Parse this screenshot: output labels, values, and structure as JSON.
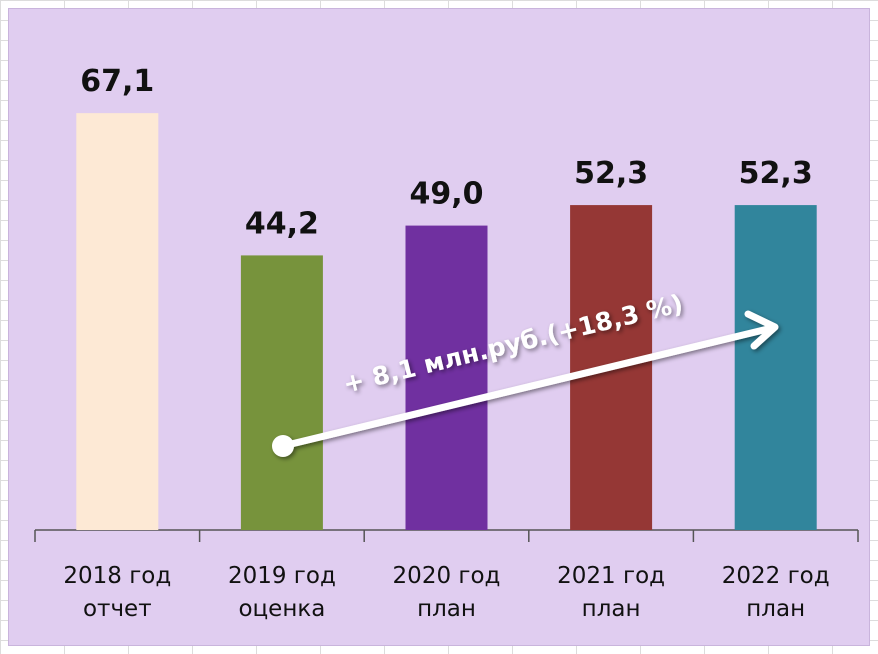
{
  "chart_data": {
    "type": "bar",
    "categories": [
      "2018 год\nотчет",
      "2019 год\nоценка",
      "2020 год\nплан",
      "2021 год\nплан",
      "2022 год\nплан"
    ],
    "values": [
      67.1,
      44.2,
      49.0,
      52.3,
      52.3
    ],
    "value_labels": [
      "67,1",
      "44,2",
      "49,0",
      "52,3",
      "52,3"
    ],
    "colors": [
      "#fde9d5",
      "#77933c",
      "#7030a0",
      "#953735",
      "#31859c"
    ],
    "ylim": [
      0,
      80
    ],
    "annotation": "+ 8,1 млн.руб.(+18,3 %)"
  }
}
